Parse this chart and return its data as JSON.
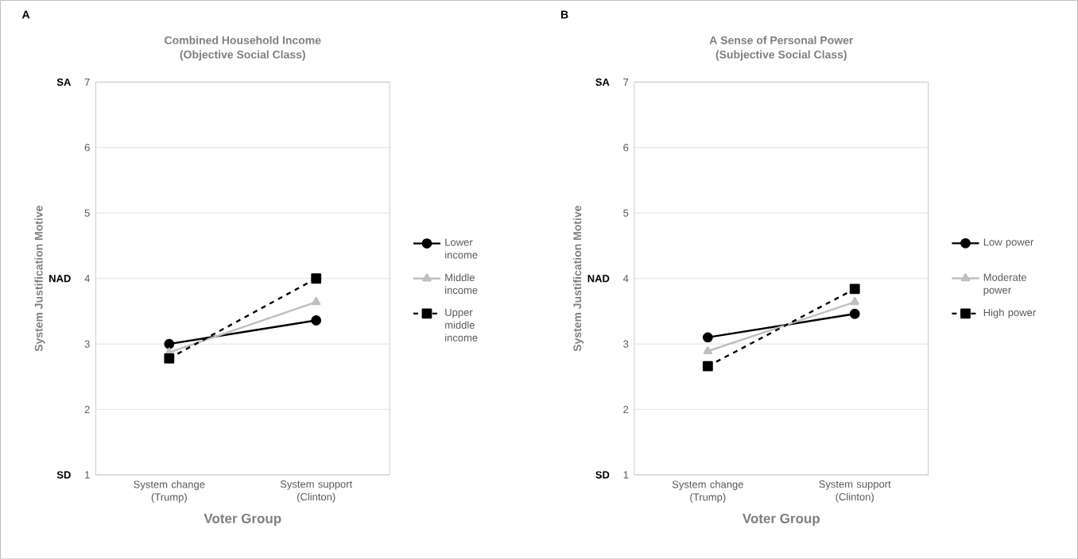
{
  "chart_data": [
    {
      "type": "line",
      "title": "Combined Household Income",
      "subtitle": "(Objective Social Class)",
      "xlabel": "Voter Group",
      "ylabel": "System Justification Motive",
      "categories": [
        "System change (Trump)",
        "System support (Clinton)"
      ],
      "series": [
        {
          "name": "Lower income",
          "color": "#000000",
          "marker": "circle",
          "line_style": "solid",
          "values": [
            3.0,
            3.36
          ]
        },
        {
          "name": "Middle income",
          "color": "#bfbfbf",
          "marker": "triangle",
          "line_style": "solid",
          "values": [
            2.87,
            3.64
          ]
        },
        {
          "name": "Upper middle income",
          "color": "#000000",
          "marker": "square",
          "line_style": "dashed",
          "values": [
            2.78,
            4.0
          ]
        }
      ],
      "ylim": [
        1,
        7
      ],
      "yticks": [
        1,
        2,
        3,
        4,
        5,
        6,
        7
      ],
      "grid": "y",
      "legend": "right",
      "annotations": [
        "A",
        "SA",
        "NAD",
        "SD"
      ]
    },
    {
      "type": "line",
      "title": "A Sense of Personal Power",
      "subtitle": "(Subjective Social Class)",
      "xlabel": "Voter Group",
      "ylabel": "System Justification Motive",
      "categories": [
        "System change (Trump)",
        "System support (Clinton)"
      ],
      "series": [
        {
          "name": "Low power",
          "color": "#000000",
          "marker": "circle",
          "line_style": "solid",
          "values": [
            3.1,
            3.46
          ]
        },
        {
          "name": "Moderate power",
          "color": "#bfbfbf",
          "marker": "triangle",
          "line_style": "solid",
          "values": [
            2.89,
            3.64
          ]
        },
        {
          "name": "High power",
          "color": "#000000",
          "marker": "square",
          "line_style": "dashed",
          "values": [
            2.66,
            3.84
          ]
        }
      ],
      "ylim": [
        1,
        7
      ],
      "yticks": [
        1,
        2,
        3,
        4,
        5,
        6,
        7
      ],
      "grid": "y",
      "legend": "right",
      "annotations": [
        "B",
        "SA",
        "NAD",
        "SD"
      ]
    }
  ]
}
